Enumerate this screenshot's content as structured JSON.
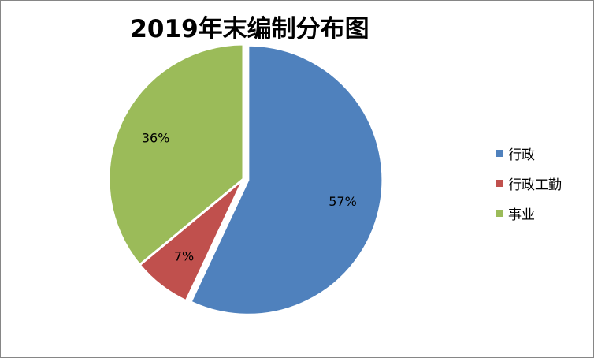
{
  "chart_data": {
    "type": "pie",
    "title": "2019年末编制分布图",
    "categories": [
      "行政",
      "行政工勤",
      "事业"
    ],
    "values": [
      57,
      7,
      36
    ],
    "labels": [
      "57%",
      "7%",
      "36%"
    ],
    "colors": [
      "#4f81bd",
      "#c0504d",
      "#9bbb59"
    ],
    "exploded": [
      true,
      false,
      false
    ],
    "start_angle": "12 o'clock",
    "direction": "clockwise",
    "legend_position": "right"
  }
}
